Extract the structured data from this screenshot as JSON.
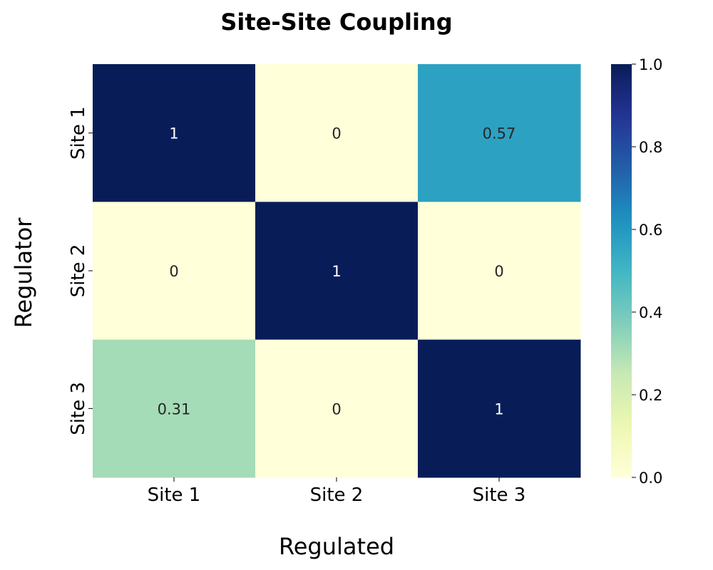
{
  "chart_data": {
    "type": "heatmap",
    "title": "Site-Site Coupling",
    "xlabel": "Regulated",
    "ylabel": "Regulator",
    "x_categories": [
      "Site 1",
      "Site 2",
      "Site 3"
    ],
    "y_categories": [
      "Site 1",
      "Site 2",
      "Site 3"
    ],
    "values": [
      [
        1,
        0,
        0.57
      ],
      [
        0,
        1,
        0
      ],
      [
        0.31,
        0,
        1
      ]
    ],
    "value_labels": [
      [
        "1",
        "0",
        "0.57"
      ],
      [
        "0",
        "1",
        "0"
      ],
      [
        "0.31",
        "0",
        "1"
      ]
    ],
    "colorbar": {
      "range": [
        0,
        1
      ],
      "ticks": [
        "0.0",
        "0.2",
        "0.4",
        "0.6",
        "0.8",
        "1.0"
      ]
    },
    "colormap": "YlGnBu",
    "colors": {
      "low": "#ffffd9",
      "high": "#081d58"
    }
  }
}
